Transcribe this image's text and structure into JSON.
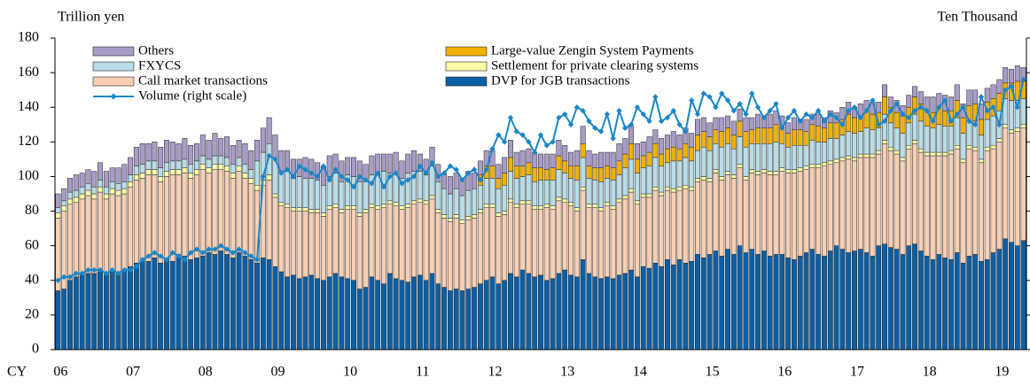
{
  "chart_data": {
    "type": "bar",
    "stacked": true,
    "y_label": "Trillion yen",
    "y2_label": "Ten Thousand",
    "x_label": "CY",
    "categories": [
      "06",
      null,
      null,
      null,
      null,
      null,
      null,
      null,
      null,
      null,
      null,
      null,
      "07",
      null,
      null,
      null,
      null,
      null,
      null,
      null,
      null,
      null,
      null,
      null,
      "08",
      null,
      null,
      null,
      null,
      null,
      null,
      null,
      null,
      null,
      null,
      null,
      "09",
      null,
      null,
      null,
      null,
      null,
      null,
      null,
      null,
      null,
      null,
      null,
      "10",
      null,
      null,
      null,
      null,
      null,
      null,
      null,
      null,
      null,
      null,
      null,
      "11",
      null,
      null,
      null,
      null,
      null,
      null,
      null,
      null,
      null,
      null,
      null,
      "12",
      null,
      null,
      null,
      null,
      null,
      null,
      null,
      null,
      null,
      null,
      null,
      "13",
      null,
      null,
      null,
      null,
      null,
      null,
      null,
      null,
      null,
      null,
      null,
      "14",
      null,
      null,
      null,
      null,
      null,
      null,
      null,
      null,
      null,
      null,
      null,
      "15",
      null,
      null,
      null,
      null,
      null,
      null,
      null,
      null,
      null,
      null,
      null,
      "16",
      null,
      null,
      null,
      null,
      null,
      null,
      null,
      null,
      null,
      null,
      null,
      "17",
      null,
      null,
      null,
      null,
      null,
      null,
      null,
      null,
      null,
      null,
      null,
      "18",
      null,
      null,
      null,
      null,
      null,
      null,
      null,
      null,
      null,
      null,
      null,
      "19",
      null,
      null,
      null,
      null
    ],
    "ylim": [
      0,
      180
    ],
    "yticks": [
      0,
      20,
      40,
      60,
      80,
      100,
      120,
      140,
      160,
      180
    ],
    "y2lim": [
      0,
      9
    ],
    "y2ticks": [
      0,
      1,
      2,
      3,
      4,
      5,
      6,
      7,
      8,
      9
    ],
    "series": [
      {
        "name": "DVP for JGB transactions",
        "color": "#0b5fa5",
        "values": [
          34,
          35,
          40,
          42,
          43,
          44,
          44,
          45,
          43,
          45,
          45,
          46,
          48,
          50,
          52,
          51,
          53,
          50,
          52,
          51,
          55,
          54,
          52,
          53,
          54,
          56,
          55,
          57,
          55,
          53,
          56,
          54,
          52,
          50,
          53,
          52,
          48,
          45,
          42,
          43,
          41,
          42,
          43,
          41,
          40,
          42,
          44,
          42,
          41,
          40,
          35,
          36,
          42,
          40,
          38,
          44,
          41,
          40,
          39,
          42,
          43,
          40,
          44,
          38,
          36,
          34,
          35,
          34,
          35,
          36,
          38,
          40,
          42,
          38,
          40,
          44,
          42,
          46,
          44,
          42,
          43,
          40,
          41,
          44,
          46,
          43,
          42,
          52,
          44,
          42,
          41,
          42,
          41,
          43,
          44,
          46,
          42,
          48,
          47,
          50,
          48,
          52,
          49,
          52,
          50,
          51,
          55,
          53,
          55,
          57,
          54,
          58,
          55,
          60,
          56,
          58,
          55,
          57,
          54,
          55,
          55,
          53,
          52,
          54,
          56,
          58,
          55,
          54,
          57,
          60,
          58,
          56,
          57,
          58,
          56,
          54,
          60,
          61,
          59,
          58,
          55,
          60,
          61,
          57,
          54,
          52,
          55,
          53,
          52,
          56,
          50,
          54,
          55,
          51,
          52,
          56,
          58,
          64,
          62,
          60,
          63
        ]
      },
      {
        "name": "Call market transactions",
        "color": "#f9cfb4",
        "values": [
          42,
          45,
          44,
          43,
          44,
          45,
          43,
          46,
          44,
          45,
          44,
          44,
          46,
          48,
          47,
          50,
          48,
          47,
          48,
          50,
          46,
          48,
          47,
          48,
          50,
          46,
          49,
          47,
          48,
          46,
          47,
          45,
          44,
          42,
          42,
          46,
          40,
          38,
          40,
          37,
          39,
          38,
          36,
          38,
          37,
          39,
          38,
          37,
          40,
          41,
          42,
          43,
          40,
          41,
          44,
          40,
          42,
          41,
          43,
          42,
          42,
          44,
          43,
          41,
          40,
          40,
          41,
          39,
          40,
          40,
          41,
          42,
          40,
          39,
          38,
          41,
          40,
          38,
          40,
          39,
          38,
          42,
          40,
          42,
          39,
          40,
          38,
          40,
          38,
          40,
          39,
          41,
          40,
          42,
          43,
          45,
          42,
          40,
          41,
          42,
          41,
          40,
          42,
          40,
          43,
          41,
          42,
          45,
          42,
          45,
          44,
          43,
          44,
          45,
          42,
          44,
          46,
          45,
          47,
          46,
          48,
          49,
          50,
          49,
          48,
          47,
          50,
          52,
          50,
          48,
          51,
          54,
          52,
          53,
          55,
          57,
          53,
          58,
          56,
          55,
          54,
          56,
          58,
          57,
          58,
          60,
          57,
          59,
          61,
          60,
          58,
          62,
          60,
          57,
          63,
          60,
          62,
          64,
          63,
          66,
          65
        ]
      },
      {
        "name": "Settlement for private clearing systems",
        "color": "#ffffa6",
        "values": [
          3,
          3,
          3,
          3,
          3,
          3,
          3,
          3,
          3,
          3,
          3,
          3,
          3,
          3,
          3,
          3,
          3,
          3,
          3,
          3,
          3,
          3,
          3,
          3,
          3,
          3,
          3,
          3,
          3,
          3,
          3,
          3,
          3,
          3,
          3,
          3,
          2,
          2,
          2,
          2,
          2,
          2,
          2,
          2,
          2,
          2,
          2,
          2,
          2,
          2,
          2,
          2,
          2,
          2,
          2,
          2,
          2,
          2,
          2,
          2,
          2,
          2,
          2,
          2,
          2,
          2,
          2,
          2,
          2,
          2,
          2,
          2,
          2,
          2,
          2,
          2,
          2,
          2,
          2,
          2,
          2,
          2,
          2,
          2,
          2,
          2,
          2,
          2,
          2,
          2,
          2,
          2,
          2,
          2,
          2,
          2,
          2,
          2,
          2,
          2,
          2,
          2,
          2,
          2,
          2,
          2,
          2,
          2,
          2,
          2,
          2,
          2,
          2,
          2,
          2,
          2,
          2,
          2,
          2,
          2,
          2,
          2,
          2,
          2,
          2,
          2,
          2,
          2,
          2,
          2,
          2,
          2,
          2,
          2,
          2,
          2,
          2,
          2,
          2,
          2,
          2,
          2,
          2,
          2,
          2,
          2,
          2,
          2,
          2,
          2,
          2,
          2,
          2,
          2,
          2,
          2,
          2,
          2,
          2,
          2,
          2
        ]
      },
      {
        "name": "FXYCS",
        "color": "#b8dde8",
        "values": [
          3,
          3,
          4,
          4,
          4,
          4,
          4,
          4,
          4,
          4,
          4,
          4,
          4,
          5,
          5,
          5,
          5,
          5,
          5,
          5,
          5,
          5,
          5,
          5,
          5,
          5,
          5,
          5,
          5,
          5,
          5,
          5,
          5,
          14,
          16,
          18,
          20,
          18,
          19,
          17,
          18,
          17,
          18,
          17,
          16,
          17,
          18,
          16,
          18,
          17,
          18,
          16,
          17,
          18,
          19,
          16,
          17,
          16,
          18,
          17,
          16,
          15,
          17,
          16,
          15,
          14,
          15,
          14,
          15,
          15,
          14,
          15,
          15,
          14,
          15,
          16,
          15,
          14,
          15,
          14,
          15,
          14,
          15,
          16,
          15,
          14,
          16,
          17,
          15,
          14,
          15,
          14,
          15,
          14,
          16,
          17,
          16,
          15,
          16,
          17,
          15,
          14,
          16,
          15,
          16,
          15,
          16,
          17,
          16,
          15,
          17,
          16,
          15,
          16,
          17,
          15,
          16,
          15,
          16,
          17,
          14,
          13,
          14,
          13,
          12,
          14,
          13,
          12,
          13,
          12,
          13,
          14,
          14,
          13,
          15,
          14,
          13,
          15,
          14,
          13,
          14,
          13,
          15,
          16,
          15,
          14,
          16,
          15,
          14,
          16,
          15,
          14,
          15,
          14,
          16,
          17,
          16,
          15,
          17,
          16,
          15
        ]
      },
      {
        "name": "Large-value Zengin System Payments",
        "color": "#f2b200",
        "values": [
          null,
          null,
          null,
          null,
          null,
          null,
          null,
          null,
          null,
          null,
          null,
          null,
          null,
          null,
          null,
          null,
          null,
          null,
          null,
          null,
          null,
          null,
          null,
          null,
          null,
          null,
          null,
          null,
          null,
          null,
          null,
          null,
          null,
          null,
          null,
          null,
          null,
          null,
          null,
          null,
          null,
          null,
          null,
          null,
          null,
          null,
          null,
          null,
          null,
          null,
          null,
          null,
          null,
          null,
          null,
          null,
          null,
          null,
          null,
          null,
          null,
          null,
          null,
          null,
          null,
          null,
          null,
          null,
          null,
          null,
          6,
          7,
          7,
          6,
          7,
          8,
          7,
          6,
          7,
          8,
          7,
          6,
          7,
          8,
          7,
          7,
          8,
          8,
          7,
          7,
          8,
          7,
          7,
          8,
          8,
          9,
          8,
          7,
          8,
          8,
          7,
          8,
          8,
          7,
          8,
          8,
          9,
          9,
          8,
          8,
          9,
          9,
          8,
          9,
          9,
          8,
          9,
          9,
          9,
          10,
          9,
          8,
          9,
          9,
          8,
          9,
          9,
          8,
          9,
          9,
          9,
          10,
          9,
          9,
          10,
          9,
          9,
          10,
          9,
          9,
          10,
          9,
          10,
          10,
          9,
          9,
          10,
          9,
          9,
          10,
          9,
          9,
          10,
          9,
          10,
          10,
          10,
          9,
          10,
          11,
          10
        ]
      },
      {
        "name": "Others",
        "color": "#a99cc8",
        "values": [
          8,
          7,
          8,
          9,
          8,
          8,
          9,
          10,
          9,
          8,
          9,
          10,
          10,
          11,
          12,
          10,
          11,
          12,
          13,
          11,
          10,
          12,
          11,
          10,
          12,
          11,
          13,
          10,
          12,
          11,
          10,
          12,
          11,
          12,
          14,
          15,
          14,
          12,
          12,
          11,
          10,
          12,
          11,
          10,
          11,
          12,
          11,
          12,
          10,
          11,
          12,
          10,
          11,
          12,
          10,
          11,
          12,
          10,
          11,
          12,
          10,
          9,
          11,
          10,
          9,
          10,
          9,
          10,
          11,
          9,
          8,
          9,
          9,
          8,
          9,
          10,
          8,
          9,
          8,
          9,
          8,
          9,
          8,
          9,
          9,
          8,
          9,
          10,
          9,
          8,
          9,
          8,
          9,
          10,
          9,
          10,
          9,
          8,
          9,
          8,
          9,
          8,
          9,
          8,
          9,
          8,
          9,
          8,
          8,
          7,
          8,
          7,
          8,
          7,
          8,
          7,
          8,
          7,
          8,
          8,
          7,
          6,
          7,
          6,
          7,
          6,
          7,
          6,
          7,
          6,
          7,
          7,
          6,
          7,
          6,
          7,
          6,
          7,
          6,
          7,
          6,
          7,
          6,
          7,
          8,
          9,
          8,
          9,
          8,
          9,
          8,
          9,
          8,
          9,
          8,
          8,
          8,
          9,
          8,
          9,
          8
        ]
      },
      {
        "name": "Volume (right scale)",
        "color": "#1a86c8",
        "axis": "y2",
        "values": [
          2.0,
          2.1,
          2.1,
          2.2,
          2.2,
          2.3,
          2.3,
          2.3,
          2.2,
          2.3,
          2.2,
          2.3,
          2.3,
          2.4,
          2.6,
          2.7,
          2.8,
          2.7,
          2.6,
          2.8,
          2.7,
          2.6,
          2.8,
          2.9,
          2.8,
          2.9,
          2.9,
          3.0,
          2.9,
          2.8,
          2.9,
          2.8,
          2.7,
          2.6,
          5.0,
          5.6,
          5.5,
          5.1,
          5.2,
          5.0,
          5.3,
          5.2,
          5.1,
          5.0,
          5.3,
          4.9,
          5.2,
          5.0,
          4.9,
          4.7,
          5.0,
          4.9,
          4.8,
          5.1,
          4.7,
          5.0,
          5.1,
          4.8,
          4.9,
          5.0,
          5.3,
          5.1,
          5.4,
          5.0,
          5.1,
          5.3,
          5.2,
          4.9,
          5.1,
          5.2,
          4.9,
          5.2,
          5.8,
          6.2,
          6.0,
          6.7,
          6.3,
          6.2,
          6.0,
          5.7,
          6.2,
          5.9,
          6.0,
          6.7,
          6.8,
          6.5,
          7.0,
          6.9,
          6.6,
          6.4,
          6.3,
          6.8,
          6.1,
          6.9,
          6.4,
          6.5,
          7.0,
          6.8,
          6.6,
          7.3,
          6.6,
          6.7,
          6.9,
          6.5,
          6.3,
          7.2,
          6.8,
          7.4,
          7.3,
          7.0,
          7.4,
          7.2,
          6.9,
          7.1,
          6.8,
          7.4,
          7.0,
          6.7,
          6.9,
          7.1,
          6.4,
          6.7,
          6.9,
          6.6,
          6.8,
          6.7,
          6.9,
          6.6,
          6.8,
          6.7,
          6.5,
          6.9,
          7.0,
          6.7,
          6.9,
          7.2,
          6.5,
          6.6,
          6.9,
          7.1,
          6.8,
          6.7,
          6.9,
          7.0,
          6.9,
          6.6,
          7.0,
          7.2,
          6.6,
          6.8,
          7.0,
          6.6,
          6.5,
          7.3,
          6.9,
          7.0,
          6.5,
          7.5,
          7.6,
          7.0,
          7.8
        ]
      }
    ]
  }
}
